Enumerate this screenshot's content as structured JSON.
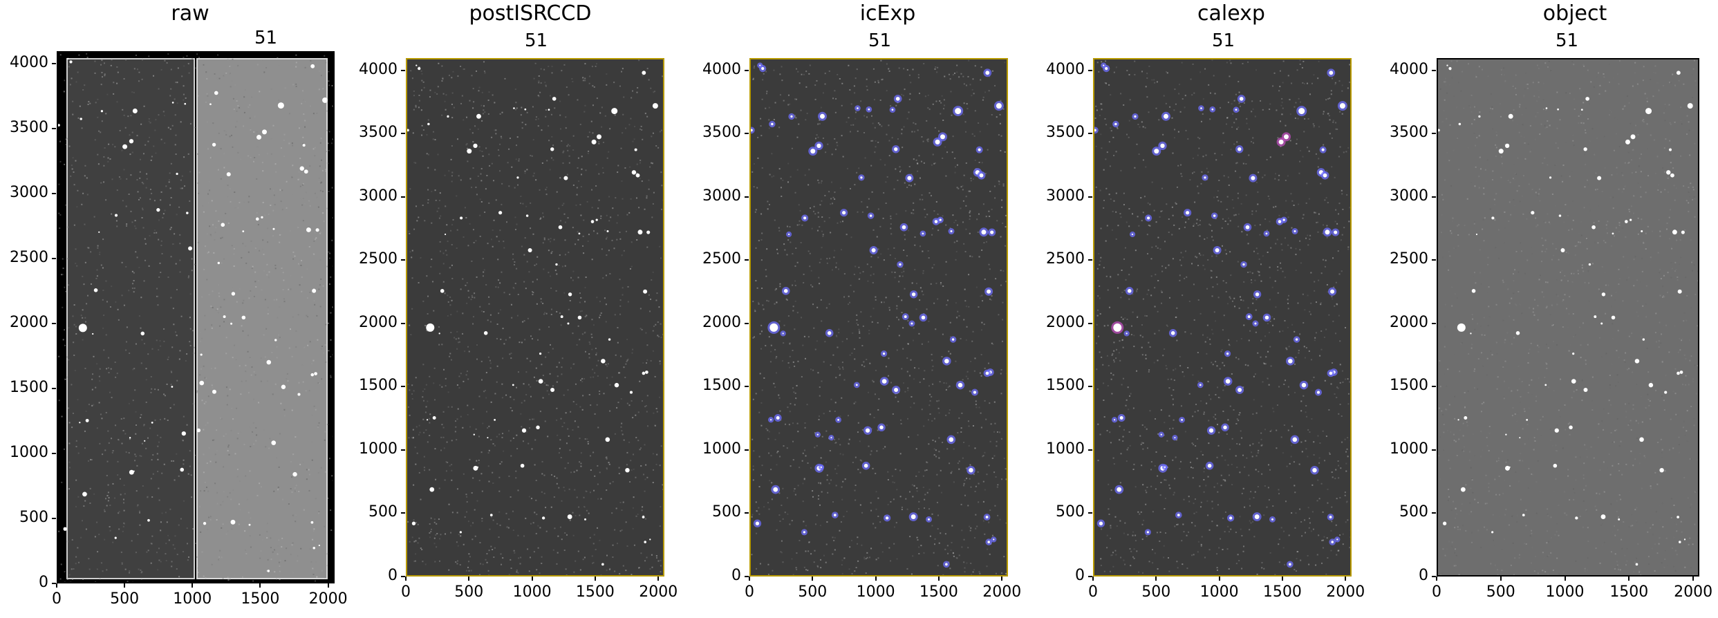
{
  "panels": [
    {
      "title": "raw",
      "label": "51",
      "variant": "raw"
    },
    {
      "title": "postISRCCD",
      "label": "51",
      "variant": "isr"
    },
    {
      "title": "icExp",
      "label": "51",
      "variant": "icexp"
    },
    {
      "title": "calexp",
      "label": "51",
      "variant": "calexp"
    },
    {
      "title": "object",
      "label": "51",
      "variant": "object"
    }
  ],
  "y_ticks": [
    "0",
    "500",
    "1000",
    "1500",
    "2000",
    "2500",
    "3000",
    "3500",
    "4000"
  ],
  "x_ticks": [
    "0",
    "500",
    "1000",
    "1500",
    "2000"
  ],
  "colors": {
    "sky_dark": "#3a3a3a",
    "sky_light": "#8a8a8a",
    "mask_blue": "#6f6fff",
    "mask_magenta": "#c04fbf",
    "edge_yellow": "#b89a00"
  }
}
